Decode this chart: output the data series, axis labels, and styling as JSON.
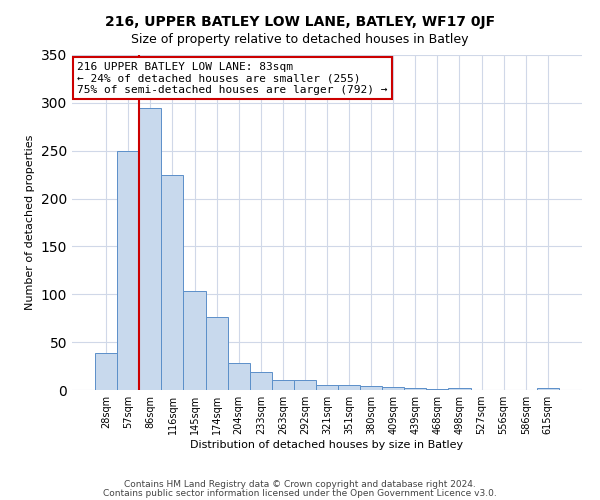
{
  "title": "216, UPPER BATLEY LOW LANE, BATLEY, WF17 0JF",
  "subtitle": "Size of property relative to detached houses in Batley",
  "xlabel": "Distribution of detached houses by size in Batley",
  "ylabel": "Number of detached properties",
  "bar_labels": [
    "28sqm",
    "57sqm",
    "86sqm",
    "116sqm",
    "145sqm",
    "174sqm",
    "204sqm",
    "233sqm",
    "263sqm",
    "292sqm",
    "321sqm",
    "351sqm",
    "380sqm",
    "409sqm",
    "439sqm",
    "468sqm",
    "498sqm",
    "527sqm",
    "556sqm",
    "586sqm",
    "615sqm"
  ],
  "bar_values": [
    39,
    250,
    295,
    225,
    103,
    76,
    28,
    19,
    10,
    10,
    5,
    5,
    4,
    3,
    2,
    1,
    2,
    0,
    0,
    0,
    2
  ],
  "bar_color": "#c8d9ed",
  "bar_edge_color": "#5b8fc9",
  "vline_x_index": 2,
  "vline_color": "#cc0000",
  "annotation_line1": "216 UPPER BATLEY LOW LANE: 83sqm",
  "annotation_line2": "← 24% of detached houses are smaller (255)",
  "annotation_line3": "75% of semi-detached houses are larger (792) →",
  "annotation_box_color": "#ffffff",
  "annotation_box_edge_color": "#cc0000",
  "ylim": [
    0,
    350
  ],
  "yticks": [
    0,
    50,
    100,
    150,
    200,
    250,
    300,
    350
  ],
  "footer_line1": "Contains HM Land Registry data © Crown copyright and database right 2024.",
  "footer_line2": "Contains public sector information licensed under the Open Government Licence v3.0.",
  "background_color": "#ffffff",
  "grid_color": "#d0d8e8",
  "title_fontsize": 10,
  "subtitle_fontsize": 9,
  "axis_label_fontsize": 8,
  "tick_fontsize": 7,
  "annotation_fontsize": 8,
  "footer_fontsize": 6.5
}
